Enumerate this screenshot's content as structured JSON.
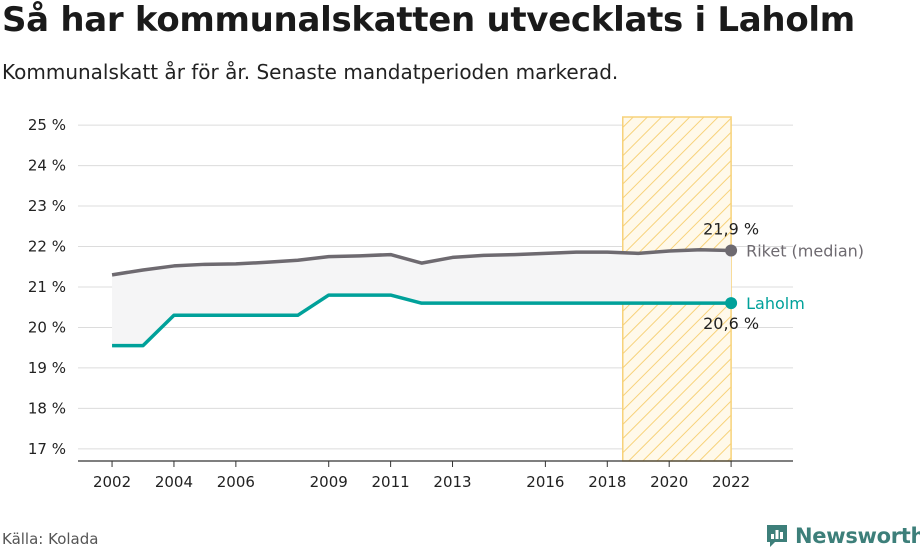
{
  "title": "Så har kommunalskatten utvecklats i Laholm",
  "subtitle": "Kommunalskatt år för år. Senaste mandatperioden markerad.",
  "source": "Källa: Kolada",
  "brand": {
    "name": "Newsworthy",
    "icon": "newsworthy-logo-icon",
    "color": "#3d7f7a"
  },
  "chart_data": {
    "type": "line",
    "x": [
      2002,
      2003,
      2004,
      2005,
      2006,
      2007,
      2008,
      2009,
      2010,
      2011,
      2012,
      2013,
      2014,
      2015,
      2016,
      2017,
      2018,
      2019,
      2020,
      2021,
      2022
    ],
    "series": [
      {
        "name": "Riket (median)",
        "color": "#6e6a70",
        "values": [
          21.3,
          21.42,
          21.52,
          21.56,
          21.57,
          21.61,
          21.66,
          21.75,
          21.77,
          21.8,
          21.59,
          21.73,
          21.78,
          21.8,
          21.83,
          21.86,
          21.86,
          21.83,
          21.89,
          21.92,
          21.9
        ],
        "end_value_label": "21,9 %"
      },
      {
        "name": "Laholm",
        "color": "#00a19a",
        "values": [
          19.55,
          19.55,
          20.3,
          20.3,
          20.3,
          20.3,
          20.3,
          20.8,
          20.8,
          20.8,
          20.6,
          20.6,
          20.6,
          20.6,
          20.6,
          20.6,
          20.6,
          20.6,
          20.6,
          20.6,
          20.6
        ],
        "end_value_label": "20,6 %"
      }
    ],
    "x_ticks": [
      2002,
      2004,
      2006,
      2009,
      2011,
      2013,
      2016,
      2018,
      2020,
      2022
    ],
    "y_ticks": [
      17,
      18,
      19,
      20,
      21,
      22,
      23,
      24,
      25
    ],
    "y_tick_labels": [
      "17 %",
      "18 %",
      "19 %",
      "20 %",
      "21 %",
      "22 %",
      "23 %",
      "24 %",
      "25 %"
    ],
    "xlim": [
      2000.9,
      2024
    ],
    "ylim": [
      16.7,
      25.2
    ],
    "highlight_period": [
      2018.5,
      2022
    ],
    "highlight_color": "#f7d27a",
    "gridlines": "horizontal",
    "gap_fill_color": "#f5f5f6"
  }
}
